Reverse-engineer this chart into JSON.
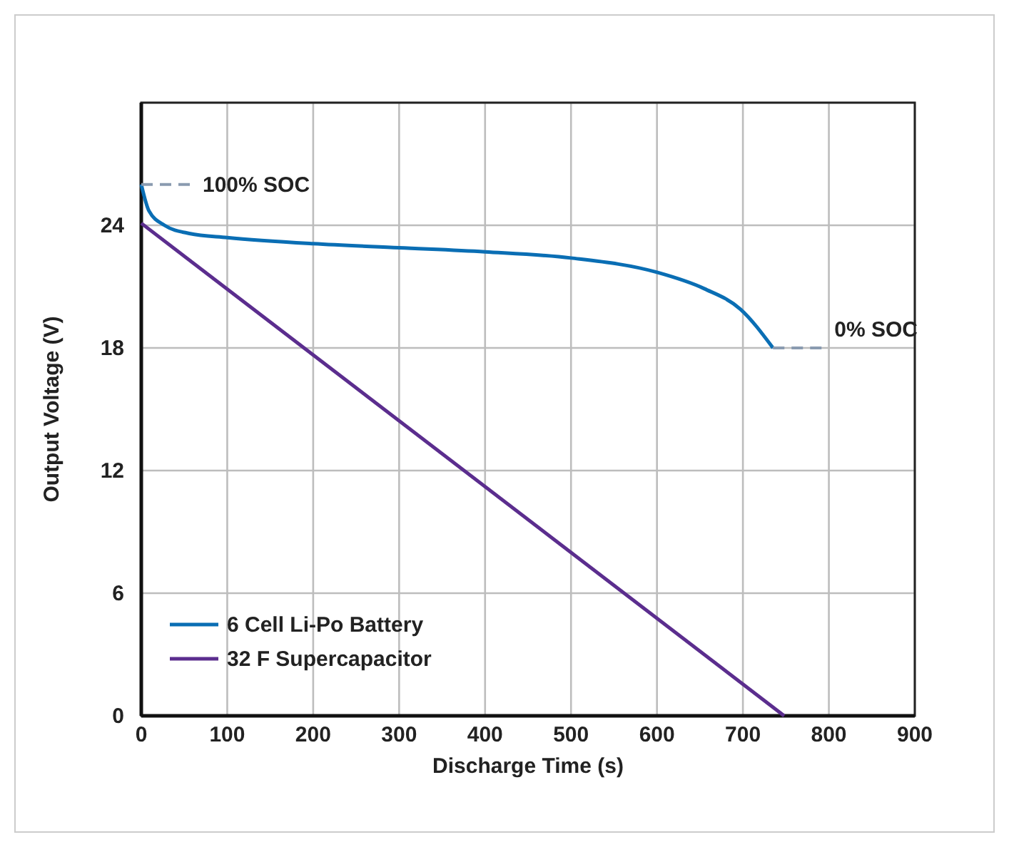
{
  "chart_data": {
    "type": "line",
    "xlabel": "Discharge Time (s)",
    "ylabel": "Output Voltage (V)",
    "xlim": [
      0,
      900
    ],
    "xticks": [
      0,
      100,
      200,
      300,
      400,
      500,
      600,
      700,
      800,
      900
    ],
    "ylim": [
      0,
      30
    ],
    "yticks": [
      0,
      6,
      12,
      18,
      24,
      {
        "value": 30,
        "label": null
      }
    ],
    "grid": true,
    "legend": "bottom left",
    "marker": "none",
    "line_style": "solid",
    "series": [
      {
        "name": "6 Cell Li-Po Battery",
        "color": "#0a6eb4",
        "x": [
          0,
          9,
          27,
          56,
          100,
          200,
          300,
          400,
          500,
          600,
          655,
          697,
          735
        ],
        "values": [
          26.0,
          24.7,
          24.0,
          23.6,
          23.4,
          23.1,
          22.9,
          22.7,
          22.4,
          21.7,
          20.9,
          19.9,
          18.0
        ]
      },
      {
        "name": "32 F Supercapacitor",
        "color": "#5b2d8e",
        "x": [
          0,
          748
        ],
        "values": [
          24.1,
          0
        ]
      }
    ],
    "annotations": [
      {
        "text": "100% SOC",
        "x": 0,
        "y": 26
      },
      {
        "text": "0% SOC",
        "x": 735,
        "y": 18
      }
    ]
  }
}
